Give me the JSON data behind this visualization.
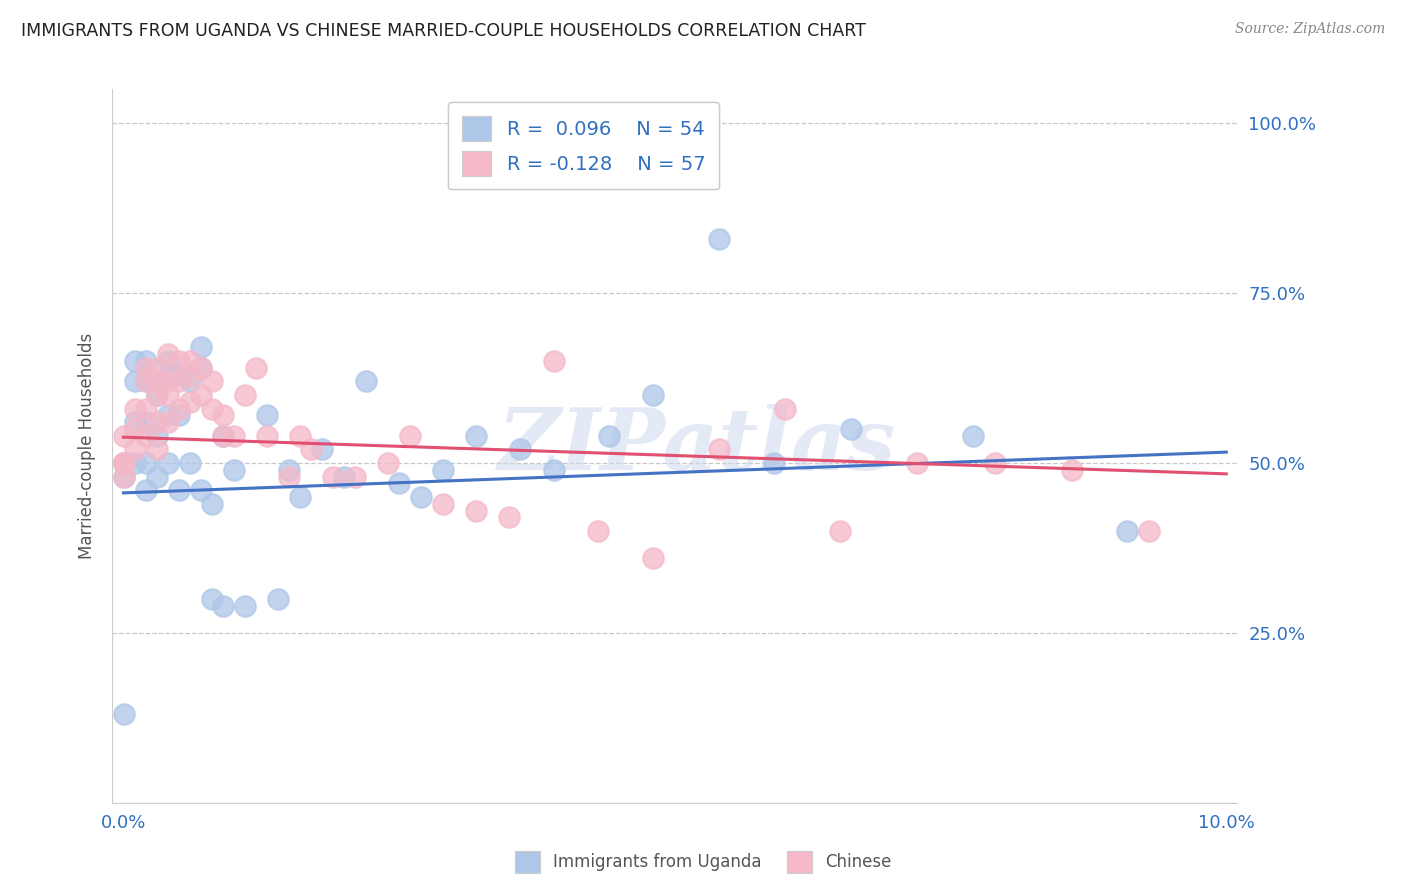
{
  "title": "IMMIGRANTS FROM UGANDA VS CHINESE MARRIED-COUPLE HOUSEHOLDS CORRELATION CHART",
  "source": "Source: ZipAtlas.com",
  "ylabel": "Married-couple Households",
  "legend_label1": "Immigrants from Uganda",
  "legend_label2": "Chinese",
  "blue_scatter_x": [
    0.0,
    0.0,
    0.001,
    0.001,
    0.001,
    0.001,
    0.002,
    0.002,
    0.002,
    0.002,
    0.002,
    0.003,
    0.003,
    0.003,
    0.003,
    0.004,
    0.004,
    0.004,
    0.004,
    0.005,
    0.005,
    0.005,
    0.006,
    0.006,
    0.007,
    0.007,
    0.007,
    0.008,
    0.008,
    0.009,
    0.009,
    0.01,
    0.011,
    0.013,
    0.014,
    0.015,
    0.016,
    0.018,
    0.02,
    0.022,
    0.025,
    0.027,
    0.029,
    0.032,
    0.036,
    0.039,
    0.044,
    0.048,
    0.054,
    0.059,
    0.066,
    0.077,
    0.091,
    0.0
  ],
  "blue_scatter_y": [
    0.48,
    0.5,
    0.62,
    0.65,
    0.56,
    0.5,
    0.65,
    0.62,
    0.56,
    0.5,
    0.46,
    0.62,
    0.6,
    0.54,
    0.48,
    0.65,
    0.63,
    0.57,
    0.5,
    0.63,
    0.57,
    0.46,
    0.62,
    0.5,
    0.67,
    0.64,
    0.46,
    0.44,
    0.3,
    0.54,
    0.29,
    0.49,
    0.29,
    0.57,
    0.3,
    0.49,
    0.45,
    0.52,
    0.48,
    0.62,
    0.47,
    0.45,
    0.49,
    0.54,
    0.52,
    0.49,
    0.54,
    0.6,
    0.83,
    0.5,
    0.55,
    0.54,
    0.4,
    0.13
  ],
  "pink_scatter_x": [
    0.0,
    0.0,
    0.001,
    0.001,
    0.001,
    0.002,
    0.002,
    0.002,
    0.002,
    0.003,
    0.003,
    0.003,
    0.003,
    0.003,
    0.004,
    0.004,
    0.004,
    0.004,
    0.005,
    0.005,
    0.005,
    0.006,
    0.006,
    0.006,
    0.007,
    0.007,
    0.008,
    0.008,
    0.009,
    0.009,
    0.01,
    0.011,
    0.012,
    0.013,
    0.015,
    0.016,
    0.017,
    0.019,
    0.021,
    0.024,
    0.026,
    0.029,
    0.032,
    0.035,
    0.039,
    0.043,
    0.048,
    0.054,
    0.06,
    0.065,
    0.072,
    0.079,
    0.086,
    0.093,
    0.0,
    0.0,
    0.0
  ],
  "pink_scatter_y": [
    0.54,
    0.5,
    0.58,
    0.55,
    0.52,
    0.64,
    0.62,
    0.58,
    0.54,
    0.64,
    0.62,
    0.6,
    0.56,
    0.52,
    0.66,
    0.62,
    0.6,
    0.56,
    0.65,
    0.62,
    0.58,
    0.65,
    0.63,
    0.59,
    0.64,
    0.6,
    0.62,
    0.58,
    0.57,
    0.54,
    0.54,
    0.6,
    0.64,
    0.54,
    0.48,
    0.54,
    0.52,
    0.48,
    0.48,
    0.5,
    0.54,
    0.44,
    0.43,
    0.42,
    0.65,
    0.4,
    0.36,
    0.52,
    0.58,
    0.4,
    0.5,
    0.5,
    0.49,
    0.4,
    0.5,
    0.5,
    0.48
  ],
  "blue_line_x": [
    0.0,
    0.1
  ],
  "blue_line_y": [
    0.456,
    0.516
  ],
  "pink_line_x": [
    0.0,
    0.1
  ],
  "pink_line_y": [
    0.538,
    0.484
  ],
  "xlim": [
    -0.001,
    0.101
  ],
  "ylim": [
    0.0,
    1.05
  ],
  "bg_color": "#ffffff",
  "scatter_blue": "#aec6e8",
  "scatter_pink": "#f4b8c8",
  "line_blue": "#4472c4",
  "line_pink": "#e05070",
  "grid_color": "#c8c8c8",
  "title_color": "#222222",
  "axis_color": "#3070c0",
  "watermark": "ZIPatlas",
  "ytick_vals": [
    0.0,
    0.25,
    0.5,
    0.75,
    1.0
  ],
  "ytick_labels": [
    "",
    "25.0%",
    "50.0%",
    "75.0%",
    "100.0%"
  ]
}
